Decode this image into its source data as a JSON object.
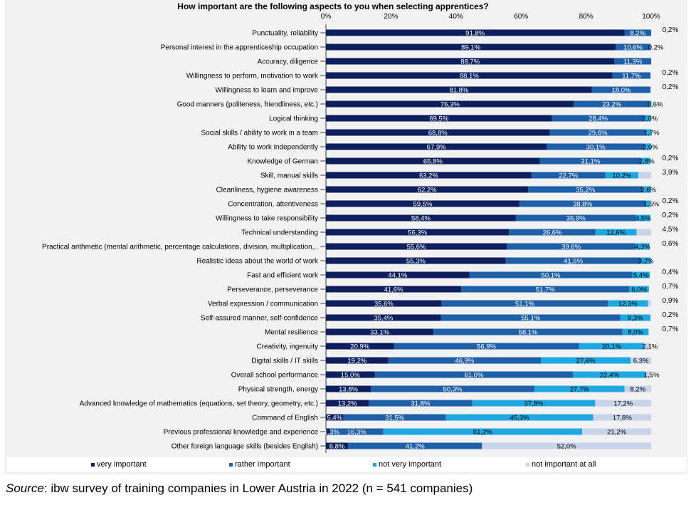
{
  "source": {
    "label": "Source",
    "text": ": ibw survey of training companies in Lower Austria in 2022 (n = 541 companies)"
  },
  "chart_data": {
    "type": "bar",
    "orientation": "horizontal",
    "stacked": true,
    "title": "How important are the following aspects to you when selecting apprentices?",
    "xlim": [
      0,
      100
    ],
    "xticks": [
      "0%",
      "20%",
      "40%",
      "60%",
      "80%",
      "100%"
    ],
    "legend_position": "bottom",
    "categories": [
      "Punctuality, reliability",
      "Personal interest in the apprenticeship occupation",
      "Accuracy, diligence",
      "Willingness to perform, motivation to work",
      "Willingness to learn and improve",
      "Good manners (politeness, friendliness, etc.)",
      "Logical thinking",
      "Social skills / ability to work in a team",
      "Ability to work independently",
      "Knowledge of German",
      "Skill, manual skills",
      "Cleanliness, hygiene awareness",
      "Concentration, attentiveness",
      "Willingness to take responsibility",
      "Technical understanding",
      "Practical arithmetic (mental arithmetic, percentage calculations, division, multiplication,..",
      "Realistic ideas about the world of work",
      "Fast and efficient work",
      "Perseverance, perseverance",
      "Verbal expression / communication",
      "Self-assured manner, self-confidence",
      "Mental resilience",
      "Creativity, ingenuity",
      "Digital skills / IT skills",
      "Overall school performance",
      "Physical strength, energy",
      "Advanced knowledge of mathematics (equations, set theory, geometry, etc.)",
      "Command of English",
      "Previous professional knowledge and experience",
      "Other foreign language skills (besides English)"
    ],
    "series": [
      {
        "name": "very important",
        "color": "#0d1f5c",
        "values": [
          91.8,
          89.1,
          88.7,
          88.1,
          81.8,
          76.3,
          69.5,
          68.8,
          67.9,
          65.8,
          63.2,
          62.2,
          59.5,
          58.4,
          56.3,
          55.6,
          55.3,
          44.1,
          41.6,
          35.6,
          35.4,
          33.1,
          20.9,
          19.2,
          15.0,
          13.8,
          13.2,
          5.4,
          1.3,
          6.8
        ],
        "labels": [
          "91,8%",
          "89,1%",
          "88,7%",
          "88,1%",
          "81,8%",
          "76,3%",
          "69,5%",
          "68,8%",
          "67,9%",
          "65,8%",
          "63,2%",
          "62,2%",
          "59,5%",
          "58,4%",
          "56,3%",
          "55,6%",
          "55,3%",
          "44,1%",
          "41,6%",
          "35,6%",
          "35,4%",
          "33,1%",
          "20,9%",
          "19,2%",
          "15,0%",
          "13,8%",
          "13,2%",
          "5,4%",
          "1,3%",
          "6,8%"
        ]
      },
      {
        "name": "rather important",
        "color": "#1f5fa8",
        "values": [
          8.2,
          10.6,
          11.3,
          11.7,
          18.0,
          23.2,
          28.4,
          29.6,
          30.1,
          31.1,
          22.7,
          35.2,
          38.8,
          36.9,
          26.6,
          39.6,
          41.5,
          50.1,
          51.7,
          51.1,
          55.1,
          58.1,
          56.9,
          46.9,
          61.0,
          50.3,
          31.8,
          31.5,
          16.3,
          41.2
        ],
        "labels": [
          "8,2%",
          "10,6%",
          "11,3%",
          "11,7%",
          "18,0%",
          "23,2%",
          "28,4%",
          "29,6%",
          "30,1%",
          "31,1%",
          "22,7%",
          "35,2%",
          "38,8%",
          "36,9%",
          "26,6%",
          "39,6%",
          "41,5%",
          "50,1%",
          "51,7%",
          "51,1%",
          "55,1%",
          "58,1%",
          "56,9%",
          "46,9%",
          "61,0%",
          "50,3%",
          "31,8%",
          "31,5%",
          "16,3%",
          "41,2%"
        ]
      },
      {
        "name": "not very important",
        "color": "#1fa7e0",
        "values": [
          0,
          0.2,
          0,
          0,
          0,
          0.6,
          2.0,
          1.7,
          2.0,
          2.8,
          10.2,
          2.6,
          1.5,
          4.5,
          12.6,
          4.3,
          3.2,
          5.4,
          6.0,
          12.3,
          9.3,
          8.0,
          20.1,
          27.6,
          22.4,
          27.7,
          37.8,
          45.3,
          61.2,
          0
        ],
        "labels": [
          "",
          "0,2%",
          "",
          "",
          "",
          "0,6%",
          "2,0%",
          "1,7%",
          "2,0%",
          "2,8%",
          "10,2%",
          "2,6%",
          "1,5%",
          "4,5%",
          "12,6%",
          "4,3%",
          "3,2%",
          "5,4%",
          "6,0%",
          "12,3%",
          "9,3%",
          "8,0%",
          "20,1%",
          "27,6%",
          "22,4%",
          "27,7%",
          "37,8%",
          "45,3%",
          "61,2%",
          ""
        ]
      },
      {
        "name": "not important at all",
        "color": "#c8d4ea",
        "values": [
          0,
          0,
          0,
          0,
          0,
          0,
          0,
          0,
          0,
          0,
          3.9,
          0,
          0,
          0,
          4.5,
          0,
          0,
          0,
          0,
          0.9,
          0,
          0,
          2.1,
          6.3,
          1.5,
          8.2,
          17.2,
          17.8,
          21.2,
          52.0
        ],
        "labels": [
          "",
          "",
          "",
          "",
          "",
          "",
          "",
          "",
          "",
          "",
          "",
          "",
          "",
          "",
          "",
          "",
          "",
          "",
          "",
          "",
          "",
          "",
          "2,1%",
          "6,3%",
          "1,5%",
          "8,2%",
          "17,2%",
          "17,8%",
          "21,2%",
          "52,0%"
        ]
      }
    ],
    "outside_labels": [
      "0,2%",
      "",
      "",
      "0,2%",
      "0,2%",
      "",
      "",
      "",
      "",
      "0,2%",
      "3,9%",
      "",
      "0,2%",
      "0,2%",
      "4,5%",
      "0,6%",
      "",
      "0,4%",
      "0,7%",
      "0,9%",
      "0,2%",
      "0,7%",
      "",
      "",
      "",
      "",
      "",
      "",
      "",
      ""
    ]
  }
}
